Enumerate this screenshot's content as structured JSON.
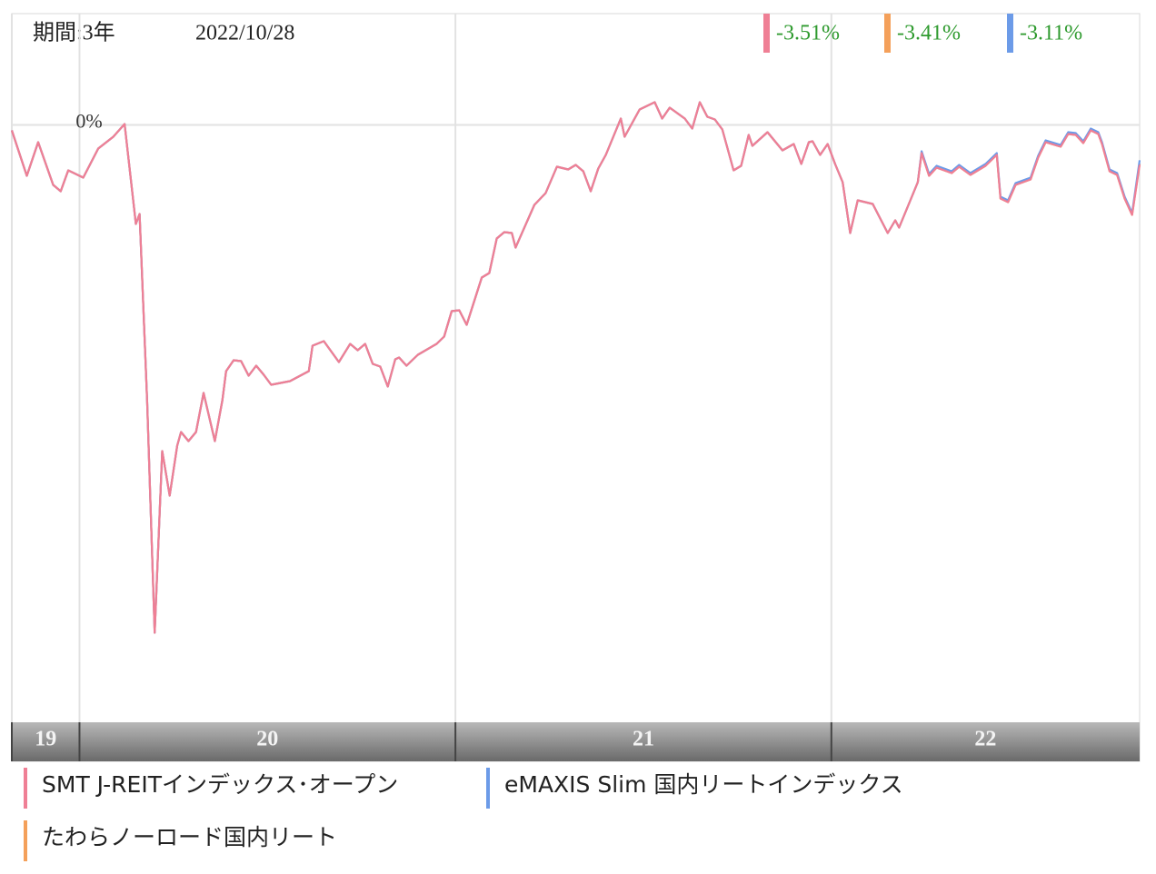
{
  "chart_data": {
    "type": "line",
    "period": "期間:3年",
    "date": "2022/10/28",
    "x": [
      2019.82,
      2019.86,
      2019.89,
      2019.93,
      2019.95,
      2019.97,
      2020.01,
      2020.05,
      2020.09,
      2020.12,
      2020.15,
      2020.16,
      2020.18,
      2020.2,
      2020.22,
      2020.24,
      2020.26,
      2020.27,
      2020.29,
      2020.31,
      2020.33,
      2020.36,
      2020.38,
      2020.39,
      2020.41,
      2020.43,
      2020.45,
      2020.47,
      2020.49,
      2020.51,
      2020.56,
      2020.61,
      2020.62,
      2020.65,
      2020.69,
      2020.72,
      2020.74,
      2020.76,
      2020.78,
      2020.8,
      2020.82,
      2020.84,
      2020.85,
      2020.87,
      2020.9,
      2020.95,
      2020.97,
      2020.99,
      2021.01,
      2021.03,
      2021.07,
      2021.09,
      2021.11,
      2021.13,
      2021.15,
      2021.16,
      2021.21,
      2021.24,
      2021.27,
      2021.3,
      2021.32,
      2021.34,
      2021.36,
      2021.38,
      2021.4,
      2021.44,
      2021.45,
      2021.49,
      2021.53,
      2021.55,
      2021.57,
      2021.61,
      2021.63,
      2021.65,
      2021.67,
      2021.69,
      2021.71,
      2021.74,
      2021.76,
      2021.78,
      2021.79,
      2021.83,
      2021.87,
      2021.9,
      2021.92,
      2021.94,
      2021.95,
      2021.97,
      2021.99,
      2022.01,
      2022.03,
      2022.05,
      2022.07,
      2022.11,
      2022.15,
      2022.17,
      2022.18,
      2022.21,
      2022.23,
      2022.24,
      2022.26,
      2022.28,
      2022.32,
      2022.34,
      2022.37,
      2022.41,
      2022.44,
      2022.45,
      2022.47,
      2022.49,
      2022.53,
      2022.55,
      2022.57,
      2022.61,
      2022.63,
      2022.65,
      2022.67,
      2022.69,
      2022.71,
      2022.72,
      2022.74,
      2022.76,
      2022.78,
      2022.8,
      2022.82
    ],
    "series": [
      {
        "name": "SMT J-REITインデックス･オープン",
        "color": "#ef7f95",
        "last_value_label": "-3.51%",
        "values": [
          -0.48,
          -4.48,
          -1.52,
          -5.28,
          -5.84,
          -4.0,
          -4.64,
          -2.08,
          -1.04,
          0.08,
          -8.72,
          -7.84,
          -24.32,
          -44.72,
          -28.72,
          -32.64,
          -28.24,
          -27.04,
          -27.84,
          -27.04,
          -23.6,
          -27.84,
          -24.24,
          -21.68,
          -20.72,
          -20.8,
          -22.08,
          -21.2,
          -22.0,
          -22.88,
          -22.56,
          -21.68,
          -19.44,
          -19.04,
          -20.88,
          -19.28,
          -19.84,
          -19.28,
          -21.04,
          -21.28,
          -23.04,
          -20.64,
          -20.48,
          -21.2,
          -20.24,
          -19.28,
          -18.64,
          -16.4,
          -16.32,
          -17.6,
          -13.44,
          -13.04,
          -10.0,
          -9.44,
          -9.52,
          -10.8,
          -7.04,
          -6.0,
          -3.68,
          -3.92,
          -3.52,
          -4.08,
          -5.84,
          -3.84,
          -2.64,
          0.56,
          -1.04,
          1.36,
          2.0,
          0.56,
          1.52,
          0.56,
          -0.32,
          2.0,
          0.72,
          0.48,
          -0.4,
          -4.0,
          -3.6,
          -0.88,
          -1.84,
          -0.64,
          -2.24,
          -1.68,
          -3.44,
          -1.52,
          -1.44,
          -2.64,
          -1.68,
          -3.44,
          -5.04,
          -9.52,
          -6.64,
          -6.96,
          -9.52,
          -8.4,
          -9.04,
          -6.64,
          -5.04,
          -2.48,
          -4.48,
          -3.76,
          -4.24,
          -3.68,
          -4.4,
          -3.6,
          -2.64,
          -6.48,
          -6.8,
          -5.28,
          -4.8,
          -2.88,
          -1.52,
          -1.92,
          -0.8,
          -0.88,
          -1.6,
          -0.48,
          -0.8,
          -1.68,
          -4.08,
          -4.4,
          -6.48,
          -7.92,
          -3.51
        ]
      },
      {
        "name": "eMAXIS Slim 国内リートインデックス",
        "color": "#6c9be8",
        "last_value_label": "-3.11%",
        "values": [
          -0.48,
          -4.48,
          -1.52,
          -5.28,
          -5.84,
          -4.0,
          -4.64,
          -2.08,
          -1.04,
          0.08,
          -8.72,
          -7.84,
          -24.32,
          -44.72,
          -28.72,
          -32.64,
          -28.24,
          -27.04,
          -27.84,
          -27.04,
          -23.6,
          -27.84,
          -24.24,
          -21.68,
          -20.72,
          -20.8,
          -22.08,
          -21.2,
          -22.0,
          -22.88,
          -22.56,
          -21.68,
          -19.44,
          -19.04,
          -20.88,
          -19.28,
          -19.84,
          -19.28,
          -21.04,
          -21.28,
          -23.04,
          -20.64,
          -20.48,
          -21.2,
          -20.24,
          -19.28,
          -18.64,
          -16.4,
          -16.32,
          -17.6,
          -13.44,
          -13.04,
          -10.0,
          -9.44,
          -9.52,
          -10.8,
          -7.04,
          -6.0,
          -3.68,
          -3.92,
          -3.52,
          -4.08,
          -5.84,
          -3.84,
          -2.64,
          0.56,
          -1.04,
          1.36,
          2.0,
          0.56,
          1.52,
          0.56,
          -0.32,
          2.0,
          0.72,
          0.48,
          -0.4,
          -4.0,
          -3.6,
          -0.88,
          -1.84,
          -0.64,
          -2.24,
          -1.68,
          -3.44,
          -1.52,
          -1.44,
          -2.64,
          -1.68,
          -3.44,
          -5.04,
          -9.52,
          -6.64,
          -6.96,
          -9.52,
          -8.4,
          -9.04,
          -6.64,
          -5.04,
          -2.32,
          -4.32,
          -3.6,
          -4.08,
          -3.52,
          -4.24,
          -3.44,
          -2.48,
          -6.32,
          -6.64,
          -5.12,
          -4.64,
          -2.72,
          -1.36,
          -1.76,
          -0.64,
          -0.72,
          -1.44,
          -0.32,
          -0.64,
          -1.52,
          -3.92,
          -4.24,
          -6.32,
          -7.76,
          -3.11
        ]
      },
      {
        "name": "たわらノーロード国内リート",
        "color": "#f4a05a",
        "last_value_label": "-3.41%",
        "values": [
          -0.48,
          -4.48,
          -1.52,
          -5.28,
          -5.84,
          -4.0,
          -4.64,
          -2.08,
          -1.04,
          0.08,
          -8.72,
          -7.84,
          -24.32,
          -44.72,
          -28.72,
          -32.64,
          -28.24,
          -27.04,
          -27.84,
          -27.04,
          -23.6,
          -27.84,
          -24.24,
          -21.68,
          -20.72,
          -20.8,
          -22.08,
          -21.2,
          -22.0,
          -22.88,
          -22.56,
          -21.68,
          -19.44,
          -19.04,
          -20.88,
          -19.28,
          -19.84,
          -19.28,
          -21.04,
          -21.28,
          -23.04,
          -20.64,
          -20.48,
          -21.2,
          -20.24,
          -19.28,
          -18.64,
          -16.4,
          -16.32,
          -17.6,
          -13.44,
          -13.04,
          -10.0,
          -9.44,
          -9.52,
          -10.8,
          -7.04,
          -6.0,
          -3.68,
          -3.92,
          -3.52,
          -4.08,
          -5.84,
          -3.84,
          -2.64,
          0.56,
          -1.04,
          1.36,
          2.0,
          0.56,
          1.52,
          0.56,
          -0.32,
          2.0,
          0.72,
          0.48,
          -0.4,
          -4.0,
          -3.6,
          -0.88,
          -1.84,
          -0.64,
          -2.24,
          -1.68,
          -3.44,
          -1.52,
          -1.44,
          -2.64,
          -1.68,
          -3.44,
          -5.04,
          -9.52,
          -6.64,
          -6.96,
          -9.52,
          -8.4,
          -9.04,
          -6.64,
          -5.04,
          -2.48,
          -4.48,
          -3.76,
          -4.24,
          -3.68,
          -4.4,
          -3.6,
          -2.64,
          -6.48,
          -6.8,
          -5.28,
          -4.8,
          -2.88,
          -1.52,
          -1.92,
          -0.8,
          -0.88,
          -1.6,
          -0.48,
          -0.8,
          -1.68,
          -4.08,
          -4.4,
          -6.48,
          -7.92,
          -3.41
        ]
      }
    ],
    "xlim": [
      2019.82,
      2022.82
    ],
    "xticks": [
      {
        "value": 2019.82,
        "label": "19"
      },
      {
        "value": 2020,
        "label": "20"
      },
      {
        "value": 2021,
        "label": "21"
      },
      {
        "value": 2022,
        "label": "22"
      }
    ],
    "ylim": [
      -52.6,
      9.8
    ],
    "yticks": [
      {
        "value": 0,
        "label": "0%"
      }
    ],
    "grid": true,
    "label_color": "#2e9a2e"
  }
}
